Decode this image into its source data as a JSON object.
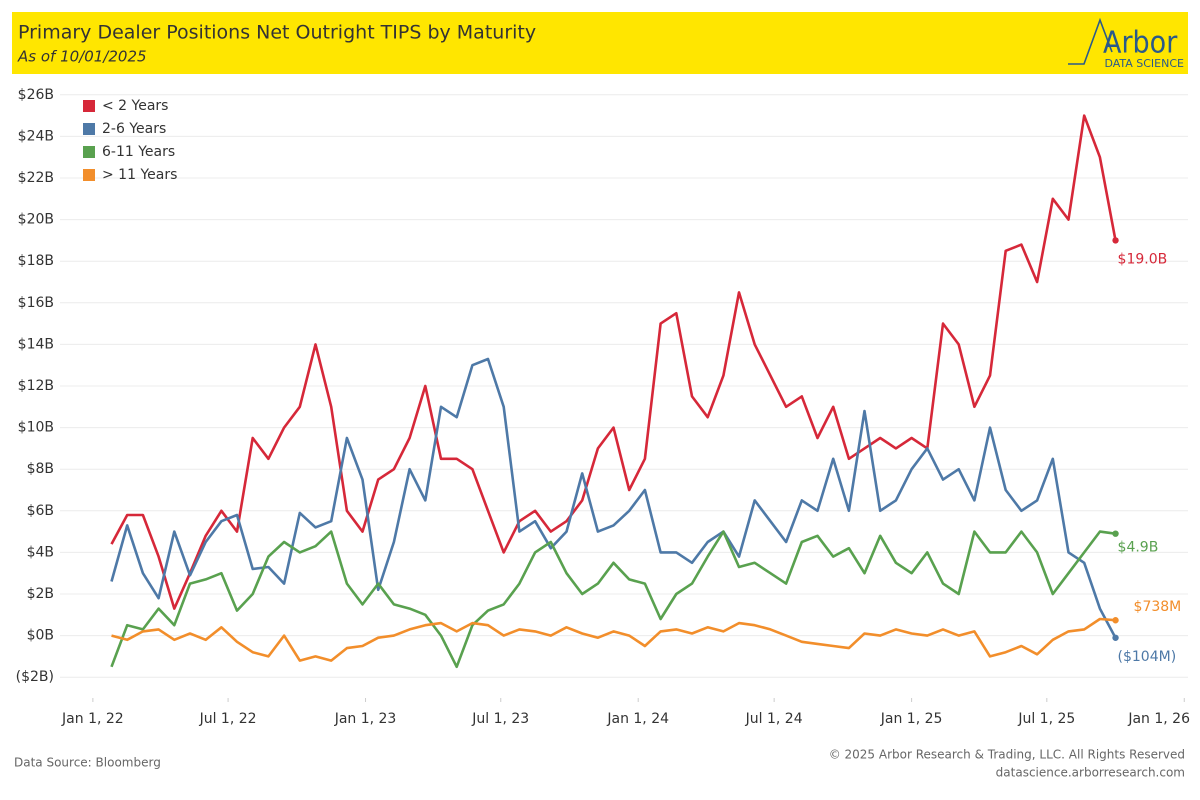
{
  "header": {
    "brand": "Arbor",
    "brand_sub": "DATA SCIENCE"
  },
  "footer": {
    "source": "Data Source: Bloomberg",
    "copyright": "© 2025 Arbor Research & Trading, LLC. All Rights Reserved",
    "url": "datascience.arborresearch.com"
  },
  "chart_data": {
    "type": "line",
    "title": "Primary Dealer Positions Net Outright TIPS by Maturity",
    "subtitle": "As of 10/01/2025",
    "grid": true,
    "legend": "top-left",
    "xlim": [
      "2021-11-18",
      "2026-01-06"
    ],
    "xticks": [
      {
        "value": "2022-01-01",
        "label": "Jan 1, 22"
      },
      {
        "value": "2022-07-01",
        "label": "Jul 1, 22"
      },
      {
        "value": "2023-01-01",
        "label": "Jan 1, 23"
      },
      {
        "value": "2023-07-01",
        "label": "Jul 1, 23"
      },
      {
        "value": "2024-01-01",
        "label": "Jan 1, 24"
      },
      {
        "value": "2024-07-01",
        "label": "Jul 1, 24"
      },
      {
        "value": "2025-01-01",
        "label": "Jan 1, 25"
      },
      {
        "value": "2025-07-01",
        "label": "Jul 1, 25"
      },
      {
        "value": "2026-01-01",
        "label": "Jan 1, 26"
      }
    ],
    "ylim": [
      -3,
      27
    ],
    "yticks": [
      {
        "value": -2,
        "label": "($2B)"
      },
      {
        "value": 0,
        "label": "$0B"
      },
      {
        "value": 2,
        "label": "$2B"
      },
      {
        "value": 4,
        "label": "$4B"
      },
      {
        "value": 6,
        "label": "$6B"
      },
      {
        "value": 8,
        "label": "$8B"
      },
      {
        "value": 10,
        "label": "$10B"
      },
      {
        "value": 12,
        "label": "$12B"
      },
      {
        "value": 14,
        "label": "$14B"
      },
      {
        "value": 16,
        "label": "$16B"
      },
      {
        "value": 18,
        "label": "$18B"
      },
      {
        "value": 20,
        "label": "$20B"
      },
      {
        "value": 22,
        "label": "$22B"
      },
      {
        "value": 24,
        "label": "$24B"
      },
      {
        "value": 26,
        "label": "$26B"
      }
    ],
    "x": [
      "2022-01-26",
      "2022-02-16",
      "2022-03-09",
      "2022-03-30",
      "2022-04-20",
      "2022-05-11",
      "2022-06-01",
      "2022-06-22",
      "2022-07-13",
      "2022-08-03",
      "2022-08-24",
      "2022-09-14",
      "2022-10-05",
      "2022-10-26",
      "2022-11-16",
      "2022-12-07",
      "2022-12-28",
      "2023-01-18",
      "2023-02-08",
      "2023-03-01",
      "2023-03-22",
      "2023-04-12",
      "2023-05-03",
      "2023-05-24",
      "2023-06-14",
      "2023-07-05",
      "2023-07-26",
      "2023-08-16",
      "2023-09-06",
      "2023-09-27",
      "2023-10-18",
      "2023-11-08",
      "2023-11-29",
      "2023-12-20",
      "2024-01-10",
      "2024-01-31",
      "2024-02-21",
      "2024-03-13",
      "2024-04-03",
      "2024-04-24",
      "2024-05-15",
      "2024-06-05",
      "2024-06-26",
      "2024-07-17",
      "2024-08-07",
      "2024-08-28",
      "2024-09-18",
      "2024-10-09",
      "2024-10-30",
      "2024-11-20",
      "2024-12-11",
      "2025-01-01",
      "2025-01-22",
      "2025-02-12",
      "2025-03-05",
      "2025-03-26",
      "2025-04-16",
      "2025-05-07",
      "2025-05-28",
      "2025-06-18",
      "2025-07-09",
      "2025-07-30",
      "2025-08-20",
      "2025-09-10",
      "2025-10-01"
    ],
    "series": [
      {
        "name": "< 2 Years",
        "color": "#d62839",
        "end_label": "$19.0B",
        "values": [
          4.4,
          5.8,
          5.8,
          3.8,
          1.3,
          3.0,
          4.8,
          6.0,
          5.0,
          9.5,
          8.5,
          10.0,
          11.0,
          14.0,
          11.0,
          6.0,
          5.0,
          7.5,
          8.0,
          9.5,
          12.0,
          8.5,
          8.5,
          8.0,
          6.0,
          4.0,
          5.5,
          6.0,
          5.0,
          5.5,
          6.5,
          9.0,
          10.0,
          7.0,
          8.5,
          15.0,
          15.5,
          11.5,
          10.5,
          12.5,
          16.5,
          14.0,
          12.5,
          11.0,
          11.5,
          9.5,
          11.0,
          8.5,
          9.0,
          9.5,
          9.0,
          9.5,
          9.0,
          15.0,
          14.0,
          11.0,
          12.5,
          18.5,
          18.8,
          17.0,
          21.0,
          20.0,
          25.0,
          23.0,
          19.0
        ]
      },
      {
        "name": "2-6 Years",
        "color": "#4e79a7",
        "end_label": "($104M)",
        "values": [
          2.6,
          5.3,
          3.0,
          1.8,
          5.0,
          2.9,
          4.5,
          5.5,
          5.8,
          3.2,
          3.3,
          2.5,
          5.9,
          5.2,
          5.5,
          9.5,
          7.5,
          2.2,
          4.5,
          8.0,
          6.5,
          11.0,
          10.5,
          13.0,
          13.3,
          11.0,
          5.0,
          5.5,
          4.2,
          5.0,
          7.8,
          5.0,
          5.3,
          6.0,
          7.0,
          4.0,
          4.0,
          3.5,
          4.5,
          5.0,
          3.8,
          6.5,
          5.5,
          4.5,
          6.5,
          6.0,
          8.5,
          6.0,
          10.8,
          6.0,
          6.5,
          8.0,
          9.0,
          7.5,
          8.0,
          6.5,
          10.0,
          7.0,
          6.0,
          6.5,
          8.5,
          4.0,
          3.5,
          1.3,
          -0.104
        ]
      },
      {
        "name": "6-11 Years",
        "color": "#59a14f",
        "end_label": "$4.9B",
        "values": [
          -1.5,
          0.5,
          0.3,
          1.3,
          0.5,
          2.5,
          2.7,
          3.0,
          1.2,
          2.0,
          3.8,
          4.5,
          4.0,
          4.3,
          5.0,
          2.5,
          1.5,
          2.5,
          1.5,
          1.3,
          1.0,
          0.0,
          -1.5,
          0.5,
          1.2,
          1.5,
          2.5,
          4.0,
          4.5,
          3.0,
          2.0,
          2.5,
          3.5,
          2.7,
          2.5,
          0.8,
          2.0,
          2.5,
          3.8,
          5.0,
          3.3,
          3.5,
          3.0,
          2.5,
          4.5,
          4.8,
          3.8,
          4.2,
          3.0,
          4.8,
          3.5,
          3.0,
          4.0,
          2.5,
          2.0,
          5.0,
          4.0,
          4.0,
          5.0,
          4.0,
          2.0,
          3.0,
          4.0,
          5.0,
          4.9
        ]
      },
      {
        "name": "> 11 Years",
        "color": "#f28e2b",
        "end_label": "$738M",
        "values": [
          0.0,
          -0.2,
          0.2,
          0.3,
          -0.2,
          0.1,
          -0.2,
          0.4,
          -0.3,
          -0.8,
          -1.0,
          0.0,
          -1.2,
          -1.0,
          -1.2,
          -0.6,
          -0.5,
          -0.1,
          0.0,
          0.3,
          0.5,
          0.6,
          0.2,
          0.6,
          0.5,
          0.0,
          0.3,
          0.2,
          0.0,
          0.4,
          0.1,
          -0.1,
          0.2,
          0.0,
          -0.5,
          0.2,
          0.3,
          0.1,
          0.4,
          0.2,
          0.6,
          0.5,
          0.3,
          0.0,
          -0.3,
          -0.4,
          -0.5,
          -0.6,
          0.1,
          0.0,
          0.3,
          0.1,
          0.0,
          0.3,
          0.0,
          0.2,
          -1.0,
          -0.8,
          -0.5,
          -0.9,
          -0.2,
          0.2,
          0.3,
          0.8,
          0.738
        ]
      }
    ]
  }
}
